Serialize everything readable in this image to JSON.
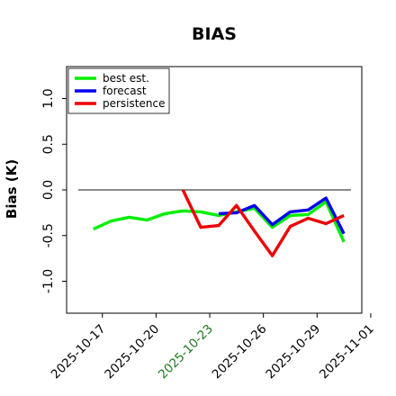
{
  "chart_data": {
    "type": "line",
    "title": "BIAS",
    "xlabel": "",
    "ylabel": "Bias (K)",
    "xlim": [
      "2025-10-15",
      "2025-10-31T12:00"
    ],
    "ylim": [
      -1.35,
      1.35
    ],
    "yticks": [
      -1.0,
      -0.5,
      0.0,
      0.5,
      1.0
    ],
    "ytick_labels": [
      "-1.0",
      "-0.5",
      "0.0",
      "0.5",
      "1.0"
    ],
    "xticks": [
      "2025-10-17",
      "2025-10-20",
      "2025-10-23",
      "2025-10-26",
      "2025-10-29",
      "2025-11-01"
    ],
    "xtick_labels": [
      "2025-10-17",
      "2025-10-20",
      "2025-10-23",
      "2025-10-26",
      "2025-10-29",
      "2025-11-01"
    ],
    "highlight_tick": "2025-10-23",
    "reference_line": 0,
    "legend_position": "top-left",
    "series": [
      {
        "name": "best est.",
        "color": "#00ee00",
        "x": [
          "2025-10-16T12:00",
          "2025-10-17T12:00",
          "2025-10-18T12:00",
          "2025-10-19T12:00",
          "2025-10-20T12:00",
          "2025-10-21T12:00",
          "2025-10-22T12:00",
          "2025-10-23T12:00",
          "2025-10-24T12:00",
          "2025-10-25T12:00",
          "2025-10-26T12:00",
          "2025-10-27T12:00",
          "2025-10-28T12:00",
          "2025-10-29T12:00",
          "2025-10-30T12:00"
        ],
        "y": [
          -0.43,
          -0.34,
          -0.3,
          -0.33,
          -0.26,
          -0.23,
          -0.24,
          -0.28,
          -0.24,
          -0.2,
          -0.41,
          -0.28,
          -0.27,
          -0.13,
          -0.57
        ]
      },
      {
        "name": "forecast",
        "color": "#0000ee",
        "x": [
          "2025-10-23T12:00",
          "2025-10-24T12:00",
          "2025-10-25T12:00",
          "2025-10-26T12:00",
          "2025-10-27T12:00",
          "2025-10-28T12:00",
          "2025-10-29T12:00",
          "2025-10-30T12:00"
        ],
        "y": [
          -0.26,
          -0.25,
          -0.17,
          -0.38,
          -0.24,
          -0.22,
          -0.09,
          -0.48
        ]
      },
      {
        "name": "persistence",
        "color": "#ee0000",
        "x": [
          "2025-10-21T12:00",
          "2025-10-22T12:00",
          "2025-10-23T12:00",
          "2025-10-24T12:00",
          "2025-10-25T12:00",
          "2025-10-26T12:00",
          "2025-10-27T12:00",
          "2025-10-28T12:00",
          "2025-10-29T12:00",
          "2025-10-30T12:00"
        ],
        "y": [
          0.0,
          -0.41,
          -0.39,
          -0.17,
          -0.45,
          -0.72,
          -0.4,
          -0.31,
          -0.37,
          -0.28
        ]
      }
    ]
  }
}
